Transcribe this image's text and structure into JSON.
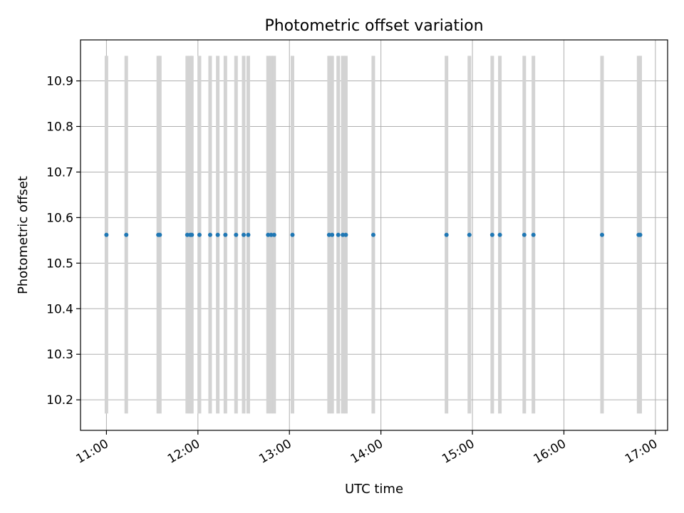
{
  "chart_data": {
    "type": "scatter",
    "title": "Photometric offset variation",
    "xlabel": "UTC time",
    "ylabel": "Photometric offset",
    "xlim": [
      "10:43",
      "17:08"
    ],
    "ylim": [
      10.133,
      10.99
    ],
    "x_ticks": [
      "11:00",
      "12:00",
      "13:00",
      "14:00",
      "15:00",
      "16:00",
      "17:00"
    ],
    "y_ticks": [
      "10.2",
      "10.3",
      "10.4",
      "10.5",
      "10.6",
      "10.7",
      "10.8",
      "10.9"
    ],
    "grid": true,
    "colors": {
      "points": "#1f77b4",
      "bars": "#d3d3d3",
      "grid": "#b0b0b0"
    },
    "bar_range": [
      10.17,
      10.955
    ],
    "series": [
      {
        "points": [
          {
            "x": "11:00",
            "y": 10.562
          },
          {
            "x": "11:13",
            "y": 10.562
          },
          {
            "x": "11:34",
            "y": 10.562
          },
          {
            "x": "11:35",
            "y": 10.562
          },
          {
            "x": "11:53",
            "y": 10.562
          },
          {
            "x": "11:55",
            "y": 10.562
          },
          {
            "x": "11:56",
            "y": 10.562
          },
          {
            "x": "12:01",
            "y": 10.562
          },
          {
            "x": "12:08",
            "y": 10.562
          },
          {
            "x": "12:13",
            "y": 10.562
          },
          {
            "x": "12:18",
            "y": 10.562
          },
          {
            "x": "12:25",
            "y": 10.562
          },
          {
            "x": "12:30",
            "y": 10.562
          },
          {
            "x": "12:33",
            "y": 10.562
          },
          {
            "x": "12:46",
            "y": 10.562
          },
          {
            "x": "12:48",
            "y": 10.562
          },
          {
            "x": "12:50",
            "y": 10.562
          },
          {
            "x": "13:02",
            "y": 10.562
          },
          {
            "x": "13:26",
            "y": 10.562
          },
          {
            "x": "13:28",
            "y": 10.562
          },
          {
            "x": "13:32",
            "y": 10.562
          },
          {
            "x": "13:35",
            "y": 10.562
          },
          {
            "x": "13:37",
            "y": 10.562
          },
          {
            "x": "13:55",
            "y": 10.562
          },
          {
            "x": "14:43",
            "y": 10.562
          },
          {
            "x": "14:58",
            "y": 10.562
          },
          {
            "x": "15:13",
            "y": 10.562
          },
          {
            "x": "15:18",
            "y": 10.562
          },
          {
            "x": "15:34",
            "y": 10.562
          },
          {
            "x": "15:40",
            "y": 10.562
          },
          {
            "x": "16:25",
            "y": 10.562
          },
          {
            "x": "16:49",
            "y": 10.562
          },
          {
            "x": "16:50",
            "y": 10.562
          }
        ]
      }
    ]
  }
}
